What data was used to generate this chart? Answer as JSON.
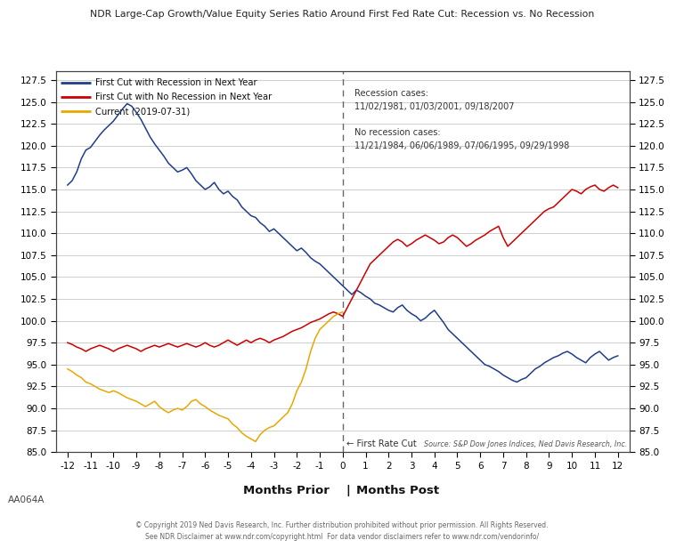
{
  "title": "NDR Large-Cap Growth/Value Equity Series Ratio Around First Fed Rate Cut: Recession vs. No Recession",
  "xlabel_left": "Months Prior",
  "xlabel_right": "Months Post",
  "xlim": [
    -12.5,
    12.5
  ],
  "ylim": [
    85.0,
    128.5
  ],
  "yticks": [
    85.0,
    87.5,
    90.0,
    92.5,
    95.0,
    97.5,
    100.0,
    102.5,
    105.0,
    107.5,
    110.0,
    112.5,
    115.0,
    117.5,
    120.0,
    122.5,
    125.0,
    127.5
  ],
  "xticks": [
    -12,
    -11,
    -10,
    -9,
    -8,
    -7,
    -6,
    -5,
    -4,
    -3,
    -2,
    -1,
    0,
    1,
    2,
    3,
    4,
    5,
    6,
    7,
    8,
    9,
    10,
    11,
    12
  ],
  "legend_entries": [
    {
      "label": "First Cut with Recession in Next Year",
      "color": "#1f3d8a"
    },
    {
      "label": "First Cut with No Recession in Next Year",
      "color": "#cc0000"
    },
    {
      "label": "Current (2019-07-31)",
      "color": "#e8a800"
    }
  ],
  "annotation_text": "Recession cases:\n11/02/1981, 01/03/2001, 09/18/2007\n\nNo recession cases:\n11/21/1984, 06/06/1989, 07/06/1995, 09/29/1998",
  "first_rate_cut_label": "← First Rate Cut",
  "source_text": "Source: S&P Dow Jones Indices, Ned Davis Research, Inc.",
  "copyright_text": "© Copyright 2019 Ned Davis Research, Inc. Further distribution prohibited without prior permission. All Rights Reserved.\nSee NDR Disclaimer at www.ndr.com/copyright.html  For data vendor disclaimers refer to www.ndr.com/vendorinfo/",
  "code_label": "AA064A",
  "background_color": "#ffffff",
  "plot_bg_color": "#ffffff",
  "grid_color": "#bbbbbb",
  "blue_x": [
    -12.0,
    -11.8,
    -11.6,
    -11.4,
    -11.2,
    -11.0,
    -10.8,
    -10.6,
    -10.4,
    -10.2,
    -10.0,
    -9.8,
    -9.6,
    -9.4,
    -9.2,
    -9.0,
    -8.8,
    -8.6,
    -8.4,
    -8.2,
    -8.0,
    -7.8,
    -7.6,
    -7.4,
    -7.2,
    -7.0,
    -6.8,
    -6.6,
    -6.4,
    -6.2,
    -6.0,
    -5.8,
    -5.6,
    -5.4,
    -5.2,
    -5.0,
    -4.8,
    -4.6,
    -4.4,
    -4.2,
    -4.0,
    -3.8,
    -3.6,
    -3.4,
    -3.2,
    -3.0,
    -2.8,
    -2.6,
    -2.4,
    -2.2,
    -2.0,
    -1.8,
    -1.6,
    -1.4,
    -1.2,
    -1.0,
    -0.8,
    -0.6,
    -0.4,
    -0.2,
    0.0,
    0.2,
    0.4,
    0.6,
    0.8,
    1.0,
    1.2,
    1.4,
    1.6,
    1.8,
    2.0,
    2.2,
    2.4,
    2.6,
    2.8,
    3.0,
    3.2,
    3.4,
    3.6,
    3.8,
    4.0,
    4.2,
    4.4,
    4.6,
    4.8,
    5.0,
    5.2,
    5.4,
    5.6,
    5.8,
    6.0,
    6.2,
    6.4,
    6.6,
    6.8,
    7.0,
    7.2,
    7.4,
    7.6,
    7.8,
    8.0,
    8.2,
    8.4,
    8.6,
    8.8,
    9.0,
    9.2,
    9.4,
    9.6,
    9.8,
    10.0,
    10.2,
    10.4,
    10.6,
    10.8,
    11.0,
    11.2,
    11.4,
    11.6,
    11.8,
    12.0
  ],
  "blue_y": [
    115.5,
    116.0,
    117.0,
    118.5,
    119.5,
    119.8,
    120.5,
    121.2,
    121.8,
    122.3,
    122.8,
    123.5,
    124.2,
    124.8,
    124.5,
    123.8,
    123.0,
    122.0,
    121.0,
    120.2,
    119.5,
    118.8,
    118.0,
    117.5,
    117.0,
    117.2,
    117.5,
    116.8,
    116.0,
    115.5,
    115.0,
    115.3,
    115.8,
    115.0,
    114.5,
    114.8,
    114.2,
    113.8,
    113.0,
    112.5,
    112.0,
    111.8,
    111.2,
    110.8,
    110.2,
    110.5,
    110.0,
    109.5,
    109.0,
    108.5,
    108.0,
    108.3,
    107.8,
    107.2,
    106.8,
    106.5,
    106.0,
    105.5,
    105.0,
    104.5,
    104.0,
    103.5,
    103.0,
    103.5,
    103.2,
    102.8,
    102.5,
    102.0,
    101.8,
    101.5,
    101.2,
    101.0,
    101.5,
    101.8,
    101.2,
    100.8,
    100.5,
    100.0,
    100.3,
    100.8,
    101.2,
    100.5,
    99.8,
    99.0,
    98.5,
    98.0,
    97.5,
    97.0,
    96.5,
    96.0,
    95.5,
    95.0,
    94.8,
    94.5,
    94.2,
    93.8,
    93.5,
    93.2,
    93.0,
    93.3,
    93.5,
    94.0,
    94.5,
    94.8,
    95.2,
    95.5,
    95.8,
    96.0,
    96.3,
    96.5,
    96.2,
    95.8,
    95.5,
    95.2,
    95.8,
    96.2,
    96.5,
    96.0,
    95.5,
    95.8,
    96.0
  ],
  "red_x": [
    -12.0,
    -11.8,
    -11.6,
    -11.4,
    -11.2,
    -11.0,
    -10.8,
    -10.6,
    -10.4,
    -10.2,
    -10.0,
    -9.8,
    -9.6,
    -9.4,
    -9.2,
    -9.0,
    -8.8,
    -8.6,
    -8.4,
    -8.2,
    -8.0,
    -7.8,
    -7.6,
    -7.4,
    -7.2,
    -7.0,
    -6.8,
    -6.6,
    -6.4,
    -6.2,
    -6.0,
    -5.8,
    -5.6,
    -5.4,
    -5.2,
    -5.0,
    -4.8,
    -4.6,
    -4.4,
    -4.2,
    -4.0,
    -3.8,
    -3.6,
    -3.4,
    -3.2,
    -3.0,
    -2.8,
    -2.6,
    -2.4,
    -2.2,
    -2.0,
    -1.8,
    -1.6,
    -1.4,
    -1.2,
    -1.0,
    -0.8,
    -0.6,
    -0.4,
    -0.2,
    0.0,
    0.2,
    0.4,
    0.6,
    0.8,
    1.0,
    1.2,
    1.4,
    1.6,
    1.8,
    2.0,
    2.2,
    2.4,
    2.6,
    2.8,
    3.0,
    3.2,
    3.4,
    3.6,
    3.8,
    4.0,
    4.2,
    4.4,
    4.6,
    4.8,
    5.0,
    5.2,
    5.4,
    5.6,
    5.8,
    6.0,
    6.2,
    6.4,
    6.6,
    6.8,
    7.0,
    7.2,
    7.4,
    7.6,
    7.8,
    8.0,
    8.2,
    8.4,
    8.6,
    8.8,
    9.0,
    9.2,
    9.4,
    9.6,
    9.8,
    10.0,
    10.2,
    10.4,
    10.6,
    10.8,
    11.0,
    11.2,
    11.4,
    11.6,
    11.8,
    12.0
  ],
  "red_y": [
    97.5,
    97.3,
    97.0,
    96.8,
    96.5,
    96.8,
    97.0,
    97.2,
    97.0,
    96.8,
    96.5,
    96.8,
    97.0,
    97.2,
    97.0,
    96.8,
    96.5,
    96.8,
    97.0,
    97.2,
    97.0,
    97.2,
    97.4,
    97.2,
    97.0,
    97.2,
    97.4,
    97.2,
    97.0,
    97.2,
    97.5,
    97.2,
    97.0,
    97.2,
    97.5,
    97.8,
    97.5,
    97.2,
    97.5,
    97.8,
    97.5,
    97.8,
    98.0,
    97.8,
    97.5,
    97.8,
    98.0,
    98.2,
    98.5,
    98.8,
    99.0,
    99.2,
    99.5,
    99.8,
    100.0,
    100.2,
    100.5,
    100.8,
    101.0,
    100.8,
    100.5,
    101.5,
    102.5,
    103.5,
    104.5,
    105.5,
    106.5,
    107.0,
    107.5,
    108.0,
    108.5,
    109.0,
    109.3,
    109.0,
    108.5,
    108.8,
    109.2,
    109.5,
    109.8,
    109.5,
    109.2,
    108.8,
    109.0,
    109.5,
    109.8,
    109.5,
    109.0,
    108.5,
    108.8,
    109.2,
    109.5,
    109.8,
    110.2,
    110.5,
    110.8,
    109.5,
    108.5,
    109.0,
    109.5,
    110.0,
    110.5,
    111.0,
    111.5,
    112.0,
    112.5,
    112.8,
    113.0,
    113.5,
    114.0,
    114.5,
    115.0,
    114.8,
    114.5,
    115.0,
    115.3,
    115.5,
    115.0,
    114.8,
    115.2,
    115.5,
    115.2
  ],
  "gold_x": [
    -12.0,
    -11.8,
    -11.6,
    -11.4,
    -11.2,
    -11.0,
    -10.8,
    -10.6,
    -10.4,
    -10.2,
    -10.0,
    -9.8,
    -9.6,
    -9.4,
    -9.2,
    -9.0,
    -8.8,
    -8.6,
    -8.4,
    -8.2,
    -8.0,
    -7.8,
    -7.6,
    -7.4,
    -7.2,
    -7.0,
    -6.8,
    -6.6,
    -6.4,
    -6.2,
    -6.0,
    -5.8,
    -5.6,
    -5.4,
    -5.2,
    -5.0,
    -4.8,
    -4.6,
    -4.4,
    -4.2,
    -4.0,
    -3.8,
    -3.6,
    -3.4,
    -3.2,
    -3.0,
    -2.8,
    -2.6,
    -2.4,
    -2.2,
    -2.0,
    -1.8,
    -1.6,
    -1.4,
    -1.2,
    -1.0,
    -0.8,
    -0.6,
    -0.4,
    -0.2,
    0.0
  ],
  "gold_y": [
    94.5,
    94.2,
    93.8,
    93.5,
    93.0,
    92.8,
    92.5,
    92.2,
    92.0,
    91.8,
    92.0,
    91.8,
    91.5,
    91.2,
    91.0,
    90.8,
    90.5,
    90.2,
    90.5,
    90.8,
    90.2,
    89.8,
    89.5,
    89.8,
    90.0,
    89.8,
    90.2,
    90.8,
    91.0,
    90.5,
    90.2,
    89.8,
    89.5,
    89.2,
    89.0,
    88.8,
    88.2,
    87.8,
    87.2,
    86.8,
    86.5,
    86.2,
    87.0,
    87.5,
    87.8,
    88.0,
    88.5,
    89.0,
    89.5,
    90.5,
    92.0,
    93.0,
    94.5,
    96.5,
    98.0,
    99.0,
    99.5,
    100.0,
    100.5,
    100.8,
    101.0
  ]
}
